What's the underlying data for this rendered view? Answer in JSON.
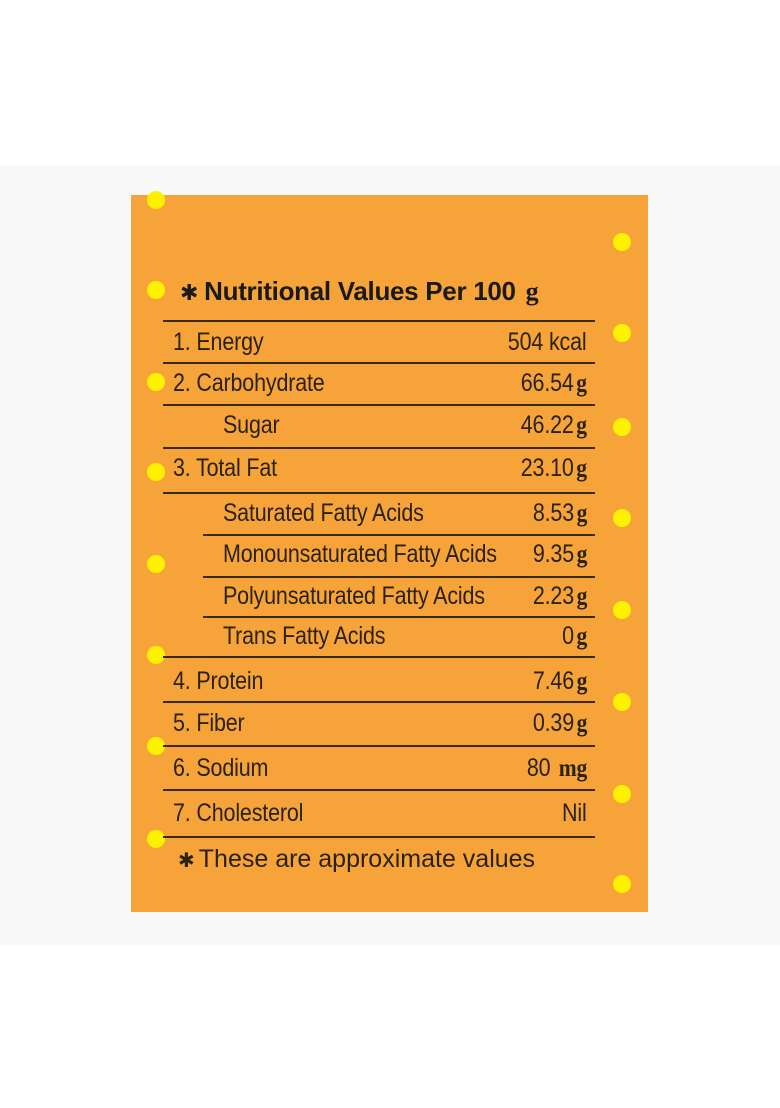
{
  "panel": {
    "title_marker": "✱",
    "title": "Nutritional Values Per 100",
    "title_unit": "g",
    "footnote_marker": "✱",
    "footnote": "These are approximate values",
    "background_color": "#f6a33a",
    "dot_color": "#fef200"
  },
  "rows": {
    "energy": {
      "label": "1. Energy",
      "value": "504 kcal",
      "unit": ""
    },
    "carbohydrate": {
      "label": "2. Carbohydrate",
      "value": "66.54",
      "unit": "g"
    },
    "sugar": {
      "label": "Sugar",
      "value": "46.22",
      "unit": "g"
    },
    "total_fat": {
      "label": "3. Total Fat",
      "value": "23.10",
      "unit": "g"
    },
    "saturated": {
      "label": "Saturated Fatty Acids",
      "value": "8.53",
      "unit": "g"
    },
    "monounsaturated": {
      "label": "Monounsaturated Fatty Acids",
      "value": "9.35",
      "unit": "g"
    },
    "polyunsaturated": {
      "label": "Polyunsaturated Fatty Acids",
      "value": "2.23",
      "unit": "g"
    },
    "trans": {
      "label": "Trans Fatty Acids",
      "value": "0",
      "unit": "g"
    },
    "protein": {
      "label": "4. Protein",
      "value": "7.46",
      "unit": "g"
    },
    "fiber": {
      "label": "5. Fiber",
      "value": "0.39",
      "unit": "g"
    },
    "sodium": {
      "label": "6. Sodium",
      "value": "80",
      "unit": "mg"
    },
    "cholesterol": {
      "label": "7. Cholesterol",
      "value": "Nil",
      "unit": ""
    }
  }
}
